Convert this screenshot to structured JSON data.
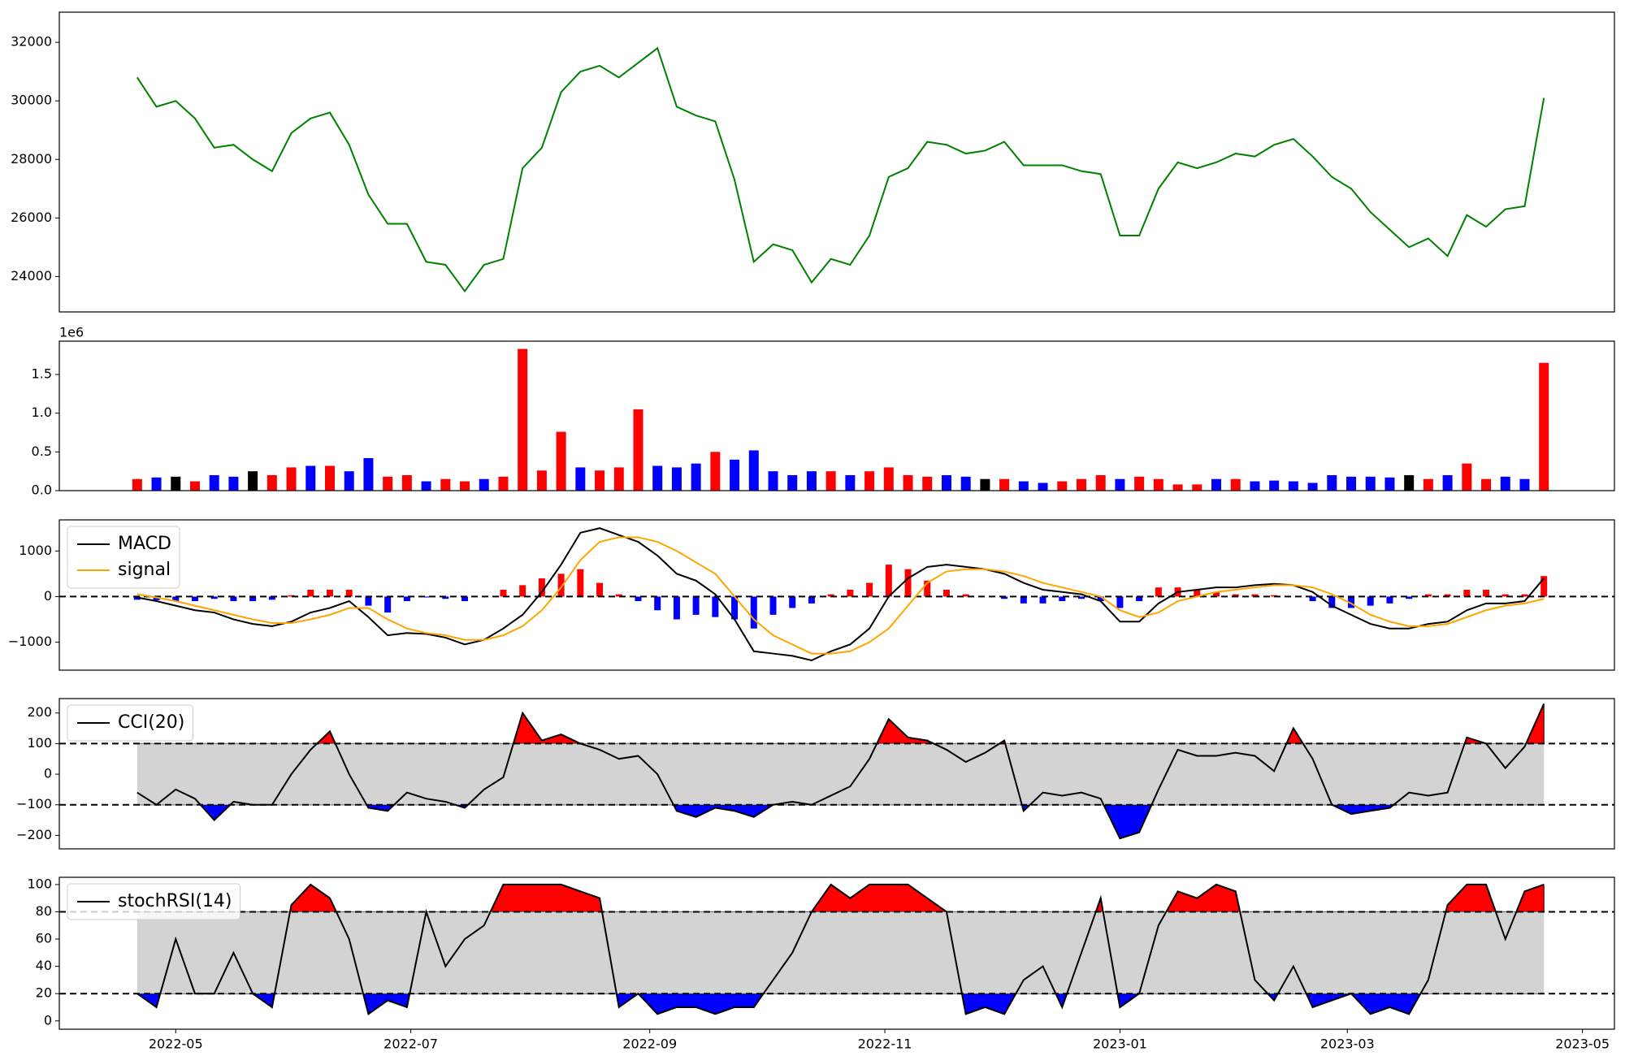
{
  "chart_data": [
    {
      "type": "line",
      "x": [
        20,
        25,
        30,
        35,
        40,
        45,
        50,
        55,
        60,
        65,
        70,
        75,
        80,
        85,
        90,
        95,
        100,
        105,
        110,
        115,
        120,
        125,
        130,
        135,
        140,
        145,
        150,
        155,
        160,
        165,
        170,
        175,
        180,
        185,
        190,
        195,
        200,
        205,
        210,
        215,
        220,
        225,
        230,
        235,
        240,
        245,
        250,
        255,
        260,
        265,
        270,
        275,
        280,
        285,
        290,
        295,
        300,
        305,
        310,
        315,
        320,
        325,
        330,
        335,
        340,
        345,
        350,
        355,
        360,
        365,
        370,
        375,
        380,
        385
      ],
      "xlim": [
        -0.2,
        403.3
      ],
      "ylim": [
        22790,
        33030
      ],
      "yticks": [
        24000,
        26000,
        28000,
        30000,
        32000
      ],
      "series": [
        {
          "color": "#008000",
          "values": [
            30800,
            29800,
            30000,
            29400,
            28400,
            28500,
            28000,
            27600,
            28900,
            29400,
            29600,
            28500,
            26800,
            25800,
            25800,
            24500,
            24400,
            23500,
            24400,
            24600,
            27700,
            28400,
            30300,
            31000,
            31200,
            30800,
            31300,
            31800,
            29800,
            29500,
            29300,
            27300,
            24500,
            25100,
            24900,
            23800,
            24600,
            24400,
            25400,
            27400,
            27700,
            28600,
            28500,
            28200,
            28300,
            28600,
            27800,
            27800,
            27800,
            27600,
            27500,
            25400,
            25400,
            27000,
            27900,
            27700,
            27900,
            28200,
            28100,
            28500,
            28700,
            28100,
            27400,
            27000,
            26200,
            25600,
            25000,
            25300,
            24700,
            26100,
            25700,
            26300,
            26400,
            30100
          ]
        }
      ]
    },
    {
      "type": "bar",
      "x": [
        20,
        25,
        30,
        35,
        40,
        45,
        50,
        55,
        60,
        65,
        70,
        75,
        80,
        85,
        90,
        95,
        100,
        105,
        110,
        115,
        120,
        125,
        130,
        135,
        140,
        145,
        150,
        155,
        160,
        165,
        170,
        175,
        180,
        185,
        190,
        195,
        200,
        205,
        210,
        215,
        220,
        225,
        230,
        235,
        240,
        245,
        250,
        255,
        260,
        265,
        270,
        275,
        280,
        285,
        290,
        295,
        300,
        305,
        310,
        315,
        320,
        325,
        330,
        335,
        340,
        345,
        350,
        355,
        360,
        365,
        370,
        375,
        380,
        385
      ],
      "xlim": [
        -0.2,
        403.3
      ],
      "ylim": [
        0,
        1930000
      ],
      "yticks": [
        {
          "value": 0,
          "label": "0.0"
        },
        {
          "value": 500000,
          "label": "0.5"
        },
        {
          "value": 1000000,
          "label": "1.0"
        },
        {
          "value": 1500000,
          "label": "1.5"
        }
      ],
      "offset_label": "1e6",
      "values": [
        150000,
        170000,
        180000,
        120000,
        200000,
        180000,
        250000,
        200000,
        300000,
        320000,
        320000,
        250000,
        420000,
        180000,
        200000,
        120000,
        150000,
        120000,
        150000,
        180000,
        1830000,
        260000,
        760000,
        300000,
        260000,
        300000,
        1050000,
        320000,
        300000,
        350000,
        500000,
        400000,
        520000,
        250000,
        200000,
        250000,
        250000,
        200000,
        250000,
        300000,
        200000,
        180000,
        200000,
        180000,
        150000,
        150000,
        120000,
        100000,
        120000,
        150000,
        200000,
        150000,
        180000,
        150000,
        80000,
        80000,
        150000,
        150000,
        120000,
        130000,
        120000,
        100000,
        200000,
        180000,
        180000,
        170000,
        200000,
        150000,
        200000,
        350000,
        150000,
        180000,
        150000,
        1650000
      ],
      "bar_colors": [
        "red",
        "blue",
        "black",
        "red",
        "blue",
        "blue",
        "black",
        "red",
        "red",
        "blue",
        "red",
        "blue",
        "blue",
        "red",
        "red",
        "blue",
        "red",
        "red",
        "blue",
        "red",
        "red",
        "red",
        "red",
        "blue",
        "red",
        "red",
        "red",
        "blue",
        "blue",
        "blue",
        "red",
        "blue",
        "blue",
        "blue",
        "blue",
        "blue",
        "red",
        "blue",
        "red",
        "red",
        "red",
        "red",
        "blue",
        "blue",
        "black",
        "red",
        "blue",
        "blue",
        "red",
        "red",
        "red",
        "blue",
        "red",
        "red",
        "red",
        "red",
        "blue",
        "red",
        "blue",
        "blue",
        "blue",
        "blue",
        "blue",
        "blue",
        "blue",
        "blue",
        "black",
        "red",
        "blue",
        "red",
        "red",
        "blue",
        "blue",
        "red"
      ]
    },
    {
      "type": "line",
      "x": [
        20,
        25,
        30,
        35,
        40,
        45,
        50,
        55,
        60,
        65,
        70,
        75,
        80,
        85,
        90,
        95,
        100,
        105,
        110,
        115,
        120,
        125,
        130,
        135,
        140,
        145,
        150,
        155,
        160,
        165,
        170,
        175,
        180,
        185,
        190,
        195,
        200,
        205,
        210,
        215,
        220,
        225,
        230,
        235,
        240,
        245,
        250,
        255,
        260,
        265,
        270,
        275,
        280,
        285,
        290,
        295,
        300,
        305,
        310,
        315,
        320,
        325,
        330,
        335,
        340,
        345,
        350,
        355,
        360,
        365,
        370,
        375,
        380,
        385
      ],
      "xlim": [
        -0.2,
        403.3
      ],
      "ylim": [
        -1614,
        1682
      ],
      "yticks": [
        {
          "value": -1000,
          "label": "−1000"
        },
        0,
        1000
      ],
      "hlines": [
        0
      ],
      "legend": "upper left",
      "series": [
        {
          "name": "MACD",
          "color": "#000000",
          "values": [
            -20,
            -100,
            -200,
            -300,
            -350,
            -500,
            -600,
            -650,
            -550,
            -350,
            -250,
            -100,
            -450,
            -850,
            -800,
            -820,
            -900,
            -1050,
            -950,
            -700,
            -400,
            100,
            700,
            1400,
            1500,
            1350,
            1200,
            900,
            500,
            350,
            50,
            -500,
            -1200,
            -1250,
            -1300,
            -1400,
            -1200,
            -1050,
            -700,
            0,
            400,
            650,
            700,
            650,
            600,
            500,
            300,
            150,
            100,
            50,
            -100,
            -550,
            -550,
            -150,
            100,
            150,
            200,
            200,
            250,
            280,
            250,
            100,
            -200,
            -400,
            -600,
            -700,
            -700,
            -600,
            -550,
            -300,
            -150,
            -150,
            -100,
            400
          ]
        },
        {
          "name": "signal",
          "color": "#ffa500",
          "values": [
            50,
            -20,
            -100,
            -200,
            -300,
            -400,
            -500,
            -580,
            -580,
            -500,
            -400,
            -250,
            -250,
            -500,
            -700,
            -800,
            -850,
            -950,
            -950,
            -850,
            -650,
            -300,
            200,
            800,
            1200,
            1300,
            1300,
            1200,
            1000,
            750,
            500,
            0,
            -500,
            -850,
            -1050,
            -1250,
            -1250,
            -1200,
            -1000,
            -700,
            -200,
            300,
            550,
            600,
            600,
            550,
            450,
            300,
            200,
            100,
            0,
            -300,
            -450,
            -350,
            -100,
            0,
            100,
            150,
            200,
            250,
            250,
            200,
            50,
            -150,
            -400,
            -550,
            -650,
            -650,
            -600,
            -450,
            -300,
            -200,
            -150,
            -50
          ]
        }
      ],
      "histogram": {
        "positive_color": "red",
        "negative_color": "blue",
        "values": [
          -70,
          -80,
          -100,
          -100,
          -50,
          -100,
          -100,
          -70,
          30,
          150,
          150,
          150,
          -200,
          -350,
          -100,
          -20,
          -50,
          -100,
          0,
          150,
          250,
          400,
          500,
          600,
          300,
          50,
          -100,
          -300,
          -500,
          -400,
          -450,
          -500,
          -700,
          -400,
          -250,
          -150,
          50,
          150,
          300,
          700,
          600,
          350,
          150,
          50,
          0,
          -50,
          -150,
          -150,
          -100,
          -50,
          -100,
          -250,
          -100,
          200,
          200,
          150,
          100,
          50,
          50,
          30,
          0,
          -100,
          -250,
          -250,
          -200,
          -150,
          -50,
          50,
          50,
          150,
          150,
          50,
          50,
          450
        ]
      }
    },
    {
      "type": "line",
      "x": [
        20,
        25,
        30,
        35,
        40,
        45,
        50,
        55,
        60,
        65,
        70,
        75,
        80,
        85,
        90,
        95,
        100,
        105,
        110,
        115,
        120,
        125,
        130,
        135,
        140,
        145,
        150,
        155,
        160,
        165,
        170,
        175,
        180,
        185,
        190,
        195,
        200,
        205,
        210,
        215,
        220,
        225,
        230,
        235,
        240,
        245,
        250,
        255,
        260,
        265,
        270,
        275,
        280,
        285,
        290,
        295,
        300,
        305,
        310,
        315,
        320,
        325,
        330,
        335,
        340,
        345,
        350,
        355,
        360,
        365,
        370,
        375,
        380,
        385
      ],
      "xlim": [
        -0.2,
        403.3
      ],
      "ylim": [
        -244,
        247
      ],
      "yticks": [
        {
          "value": -200,
          "label": "−200"
        },
        {
          "value": -100,
          "label": "−100"
        },
        0,
        100,
        200
      ],
      "hlines": [
        100,
        -100
      ],
      "band_color": "#d3d3d3",
      "fill_above_color": "red",
      "fill_below_color": "blue",
      "legend": "upper left",
      "series": [
        {
          "name": "CCI(20)",
          "color": "#000000",
          "values": [
            -60,
            -100,
            -50,
            -80,
            -150,
            -90,
            -100,
            -100,
            0,
            80,
            140,
            0,
            -110,
            -120,
            -60,
            -80,
            -90,
            -110,
            -50,
            -10,
            200,
            110,
            130,
            100,
            80,
            50,
            60,
            0,
            -120,
            -140,
            -110,
            -120,
            -140,
            -100,
            -90,
            -100,
            -70,
            -40,
            50,
            180,
            120,
            110,
            80,
            40,
            70,
            110,
            -120,
            -60,
            -70,
            -60,
            -80,
            -210,
            -190,
            -50,
            80,
            60,
            60,
            70,
            60,
            10,
            150,
            50,
            -100,
            -130,
            -120,
            -110,
            -60,
            -70,
            -60,
            120,
            100,
            20,
            90,
            230
          ]
        }
      ]
    },
    {
      "type": "line",
      "x": [
        20,
        25,
        30,
        35,
        40,
        45,
        50,
        55,
        60,
        65,
        70,
        75,
        80,
        85,
        90,
        95,
        100,
        105,
        110,
        115,
        120,
        125,
        130,
        135,
        140,
        145,
        150,
        155,
        160,
        165,
        170,
        175,
        180,
        185,
        190,
        195,
        200,
        205,
        210,
        215,
        220,
        225,
        230,
        235,
        240,
        245,
        250,
        255,
        260,
        265,
        270,
        275,
        280,
        285,
        290,
        295,
        300,
        305,
        310,
        315,
        320,
        325,
        330,
        335,
        340,
        345,
        350,
        355,
        360,
        365,
        370,
        375,
        380,
        385
      ],
      "xlim": [
        -0.2,
        403.3
      ],
      "ylim": [
        -6.1,
        105.3
      ],
      "yticks": [
        0,
        20,
        40,
        60,
        80,
        100
      ],
      "xticks": [
        {
          "value": 30,
          "label": "2022-05"
        },
        {
          "value": 91,
          "label": "2022-07"
        },
        {
          "value": 153,
          "label": "2022-09"
        },
        {
          "value": 214,
          "label": "2022-11"
        },
        {
          "value": 275,
          "label": "2023-01"
        },
        {
          "value": 334,
          "label": "2023-03"
        },
        {
          "value": 395,
          "label": "2023-05"
        }
      ],
      "hlines": [
        80,
        20
      ],
      "band_color": "#d3d3d3",
      "fill_above_color": "red",
      "fill_below_color": "blue",
      "legend": "upper left",
      "series": [
        {
          "name": "stochRSI(14)",
          "color": "#000000",
          "values": [
            20,
            10,
            60,
            20,
            20,
            50,
            20,
            10,
            85,
            100,
            90,
            60,
            5,
            15,
            10,
            80,
            40,
            60,
            70,
            100,
            100,
            100,
            100,
            95,
            90,
            10,
            20,
            5,
            10,
            10,
            5,
            10,
            10,
            30,
            50,
            80,
            100,
            90,
            100,
            100,
            100,
            90,
            80,
            5,
            10,
            5,
            30,
            40,
            10,
            50,
            90,
            10,
            20,
            70,
            95,
            90,
            100,
            95,
            30,
            15,
            40,
            10,
            15,
            20,
            5,
            10,
            5,
            30,
            85,
            100,
            100,
            60,
            95,
            100
          ]
        }
      ]
    }
  ]
}
